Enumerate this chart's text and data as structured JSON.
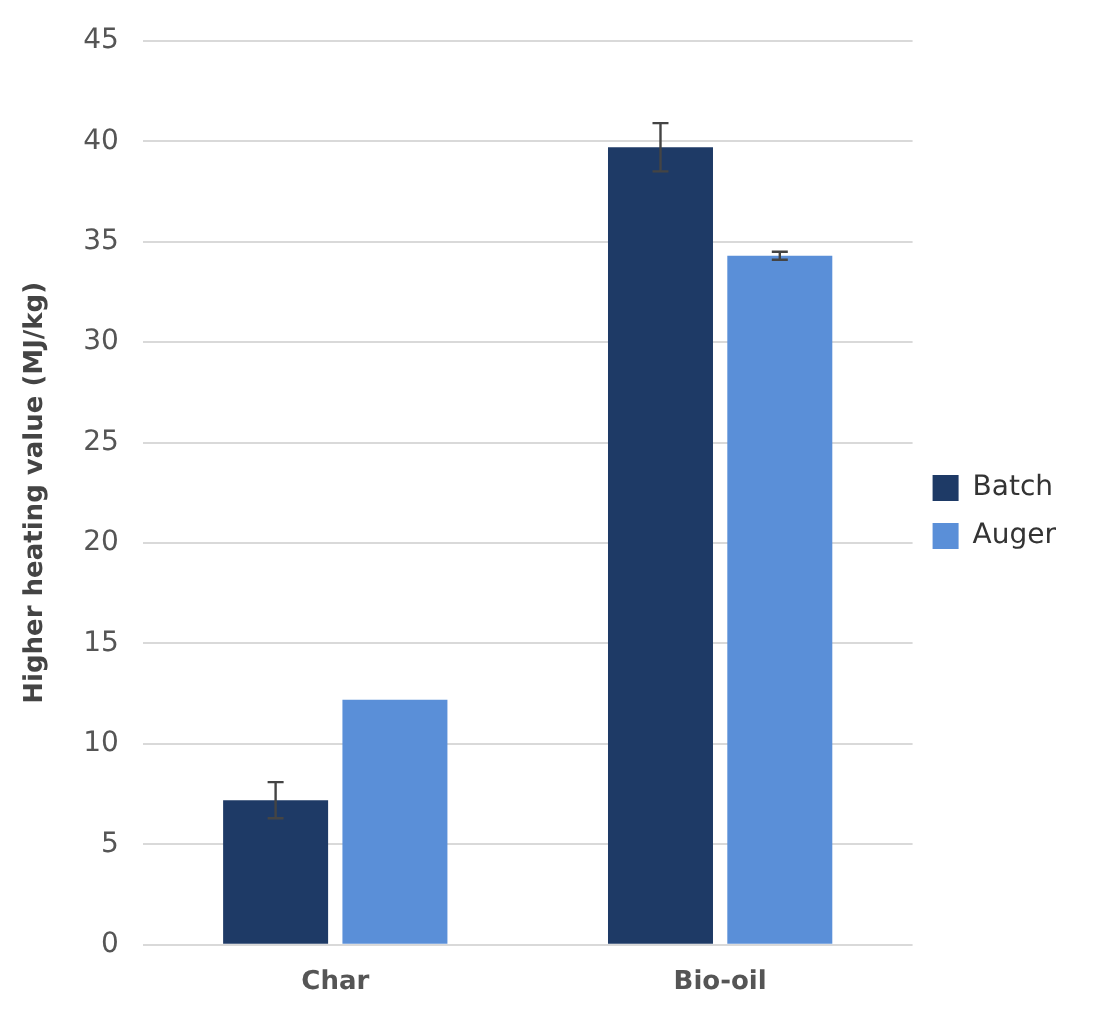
{
  "chart_data": {
    "type": "bar",
    "ylabel": "Higher heating value (MJ/kg)",
    "categories": [
      "Char",
      "Bio-oil"
    ],
    "series": [
      {
        "name": "Batch",
        "color": "#1e3a66",
        "values": [
          7.2,
          39.7
        ],
        "errors": [
          0.9,
          1.2
        ]
      },
      {
        "name": "Auger",
        "color": "#5a8fd8",
        "values": [
          12.2,
          34.3
        ],
        "errors": [
          null,
          0.2
        ]
      }
    ],
    "ylim": [
      0,
      45
    ],
    "yticks": [
      0,
      5,
      10,
      15,
      20,
      25,
      30,
      35,
      40,
      45
    ],
    "grid": "y",
    "legend": "right"
  }
}
